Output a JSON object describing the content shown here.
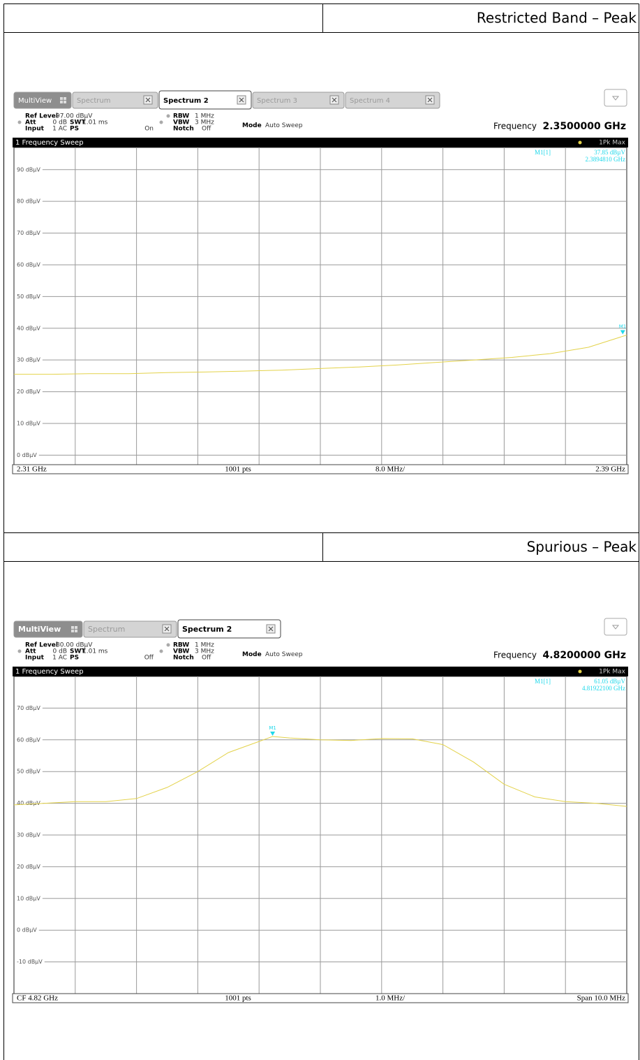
{
  "sections": [
    {
      "heading": "Restricted Band – Peak",
      "screen": {
        "tabs": [
          "MultiView",
          "Spectrum",
          "Spectrum 2",
          "Spectrum 3",
          "Spectrum 4"
        ],
        "active_tab": 2,
        "settings": [
          {
            "label": "Ref Level",
            "value": "97.00 dBµV"
          },
          {
            "label": "Att",
            "value": "0 dB"
          },
          {
            "label": "Input",
            "value": "1 AC"
          },
          {
            "label": "SWT",
            "value": "1.01 ms"
          },
          {
            "label": "PS",
            "value": "On"
          },
          {
            "label": "RBW",
            "value": "1 MHz"
          },
          {
            "label": "VBW",
            "value": "3 MHz"
          },
          {
            "label": "Notch",
            "value": "Off"
          },
          {
            "label": "Mode",
            "value": "Auto Sweep"
          }
        ],
        "frequency": {
          "label": "Frequency",
          "value": "2.3500000 GHz"
        },
        "chart": {
          "type": "line",
          "title": "1 Frequency Sweep",
          "trace_label": "1Pk Max",
          "color": "#e3d24a",
          "x": [
            2.31,
            2.315,
            2.32,
            2.325,
            2.33,
            2.335,
            2.34,
            2.345,
            2.35,
            2.355,
            2.36,
            2.365,
            2.37,
            2.375,
            2.38,
            2.385,
            2.39
          ],
          "values": [
            25.5,
            25.5,
            25.7,
            25.7,
            26.0,
            26.2,
            26.5,
            26.8,
            27.3,
            27.8,
            28.4,
            29.2,
            30.0,
            30.8,
            32.0,
            34.0,
            37.85
          ],
          "xlim": [
            2.31,
            2.39
          ],
          "ylim": [
            -3,
            97
          ],
          "yticks": [
            {
              "value": 0,
              "label": "0 dBµV"
            },
            {
              "value": 10,
              "label": "10 dBµV"
            },
            {
              "value": 20,
              "label": "20 dBµV"
            },
            {
              "value": 30,
              "label": "30 dBµV"
            },
            {
              "value": 40,
              "label": "40 dBµV"
            },
            {
              "value": 50,
              "label": "50 dBµV"
            },
            {
              "value": 60,
              "label": "60 dBµV"
            },
            {
              "value": 70,
              "label": "70 dBµV"
            },
            {
              "value": 80,
              "label": "80 dBµV"
            },
            {
              "value": 90,
              "label": "90 dBµV"
            }
          ],
          "marker": {
            "name": "M1",
            "label": "M1[1]",
            "x": 2.389481,
            "value": 37.85,
            "value_label": "37.85 dBµV",
            "x_label": "2.3894810 GHz"
          },
          "footer": [
            "2.31 GHz",
            "1001 pts",
            "8.0 MHz/",
            "2.39 GHz"
          ]
        }
      }
    },
    {
      "heading": "Spurious – Peak",
      "screen": {
        "tabs": [
          "MultiView",
          "Spectrum",
          "Spectrum 2"
        ],
        "active_tab": 2,
        "settings": [
          {
            "label": "Ref Level",
            "value": "80.00 dBµV"
          },
          {
            "label": "Att",
            "value": "0 dB"
          },
          {
            "label": "Input",
            "value": "1 AC"
          },
          {
            "label": "SWT",
            "value": "1.01 ms"
          },
          {
            "label": "PS",
            "value": "Off"
          },
          {
            "label": "RBW",
            "value": "1 MHz"
          },
          {
            "label": "VBW",
            "value": "3 MHz"
          },
          {
            "label": "Notch",
            "value": "Off"
          },
          {
            "label": "Mode",
            "value": "Auto Sweep"
          }
        ],
        "frequency": {
          "label": "Frequency",
          "value": "4.8200000 GHz"
        },
        "chart": {
          "type": "line",
          "title": "1 Frequency Sweep",
          "trace_label": "1Pk Max",
          "color": "#e3d24a",
          "x": [
            4.815,
            4.8155,
            4.816,
            4.8165,
            4.817,
            4.8175,
            4.818,
            4.8185,
            4.819,
            4.81922,
            4.8195,
            4.82,
            4.8205,
            4.821,
            4.8215,
            4.822,
            4.8225,
            4.823,
            4.8235,
            4.824,
            4.8245,
            4.825
          ],
          "values": [
            39.5,
            40.0,
            40.5,
            40.5,
            41.5,
            45.0,
            50.0,
            56.0,
            59.5,
            61.05,
            60.6,
            60.0,
            59.8,
            60.4,
            60.3,
            58.5,
            53.0,
            46.0,
            42.0,
            40.5,
            40.0,
            39.0
          ],
          "xlim": [
            4.815,
            4.825
          ],
          "ylim": [
            -20,
            80
          ],
          "yticks": [
            {
              "value": -10,
              "label": "-10 dBµV"
            },
            {
              "value": 0,
              "label": "0 dBµV"
            },
            {
              "value": 10,
              "label": "10 dBµV"
            },
            {
              "value": 20,
              "label": "20 dBµV"
            },
            {
              "value": 30,
              "label": "30 dBµV"
            },
            {
              "value": 40,
              "label": "40 dBµV"
            },
            {
              "value": 50,
              "label": "50 dBµV"
            },
            {
              "value": 60,
              "label": "60 dBµV"
            },
            {
              "value": 70,
              "label": "70 dBµV"
            }
          ],
          "marker": {
            "name": "M1",
            "label": "M1[1]",
            "x": 4.819221,
            "value": 61.05,
            "value_label": "61.05 dBµV",
            "x_label": "4.81922100 GHz"
          },
          "footer": [
            "CF 4.82 GHz",
            "1001 pts",
            "1.0 MHz/",
            "Span 10.0 MHz"
          ]
        }
      }
    }
  ]
}
